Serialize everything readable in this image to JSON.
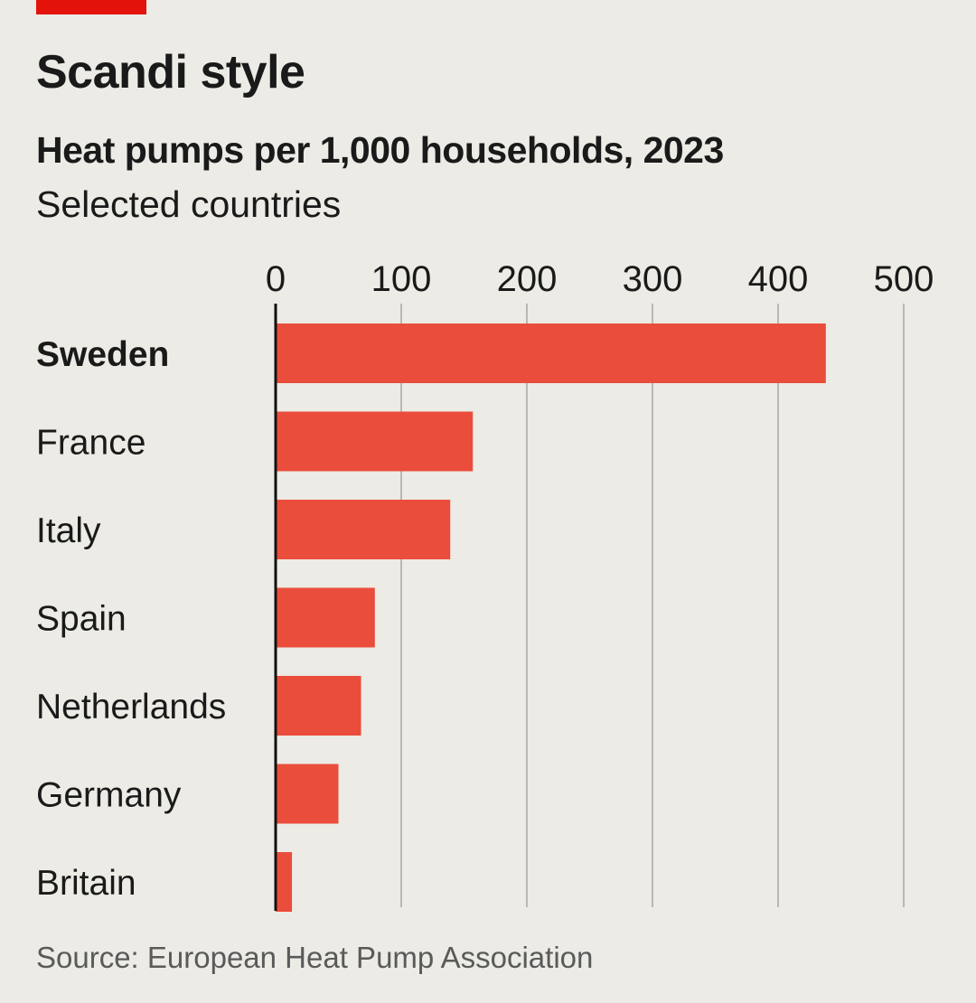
{
  "header": {
    "title": "Scandi style",
    "subtitle": "Heat pumps per 1,000 households, 2023",
    "subsubtitle": "Selected countries"
  },
  "footer": {
    "source": "Source: European Heat Pump Association"
  },
  "colors": {
    "background": "#ecebe5",
    "bar": "#ea4d3b",
    "accent_tag": "#e3120b",
    "grid": "#b9b8b3",
    "axis": "#111111"
  },
  "chart_data": {
    "type": "bar",
    "orientation": "horizontal",
    "categories": [
      "Sweden",
      "France",
      "Italy",
      "Spain",
      "Netherlands",
      "Germany",
      "Britain"
    ],
    "values": [
      438,
      157,
      139,
      79,
      68,
      50,
      13
    ],
    "highlighted_category": "Sweden",
    "xlim": [
      0,
      500
    ],
    "xticks": [
      "0",
      "100",
      "200",
      "300",
      "400",
      "500"
    ],
    "tick_position": "top",
    "grid": true,
    "legend": "none"
  }
}
